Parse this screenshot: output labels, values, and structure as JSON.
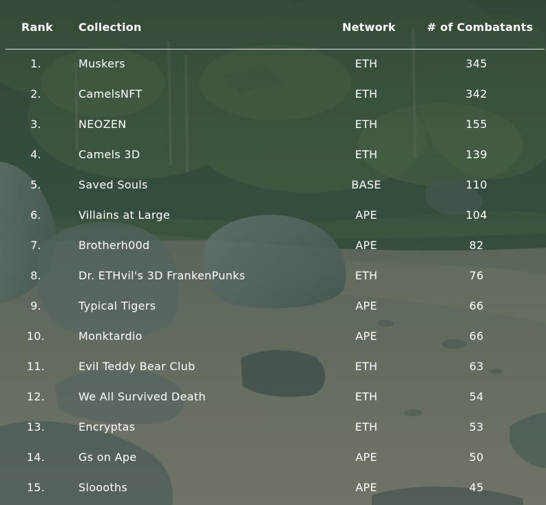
{
  "header": {
    "rank": "Rank",
    "collection": "Collection",
    "network": "Network",
    "combatants": "# of Combatants"
  },
  "rows": [
    {
      "rank": "1.",
      "collection": "Muskers",
      "network": "ETH",
      "combatants": "345"
    },
    {
      "rank": "2.",
      "collection": "CamelsNFT",
      "network": "ETH",
      "combatants": "342"
    },
    {
      "rank": "3.",
      "collection": "NEOZEN",
      "network": "ETH",
      "combatants": "155"
    },
    {
      "rank": "4.",
      "collection": "Camels 3D",
      "network": "ETH",
      "combatants": "139"
    },
    {
      "rank": "5.",
      "collection": "Saved Souls",
      "network": "BASE",
      "combatants": "110"
    },
    {
      "rank": "6.",
      "collection": "Villains at Large",
      "network": "APE",
      "combatants": "104"
    },
    {
      "rank": "7.",
      "collection": "Brotherh00d",
      "network": "APE",
      "combatants": "82"
    },
    {
      "rank": "8.",
      "collection": "Dr. ETHvil's 3D FrankenPunks",
      "network": "ETH",
      "combatants": "76"
    },
    {
      "rank": "9.",
      "collection": "Typical Tigers",
      "network": "APE",
      "combatants": "66"
    },
    {
      "rank": "10.",
      "collection": "Monktardio",
      "network": "APE",
      "combatants": "66"
    },
    {
      "rank": "11.",
      "collection": "Evil Teddy Bear Club",
      "network": "ETH",
      "combatants": "63"
    },
    {
      "rank": "12.",
      "collection": "We All Survived Death",
      "network": "ETH",
      "combatants": "54"
    },
    {
      "rank": "13.",
      "collection": "Encryptas",
      "network": "ETH",
      "combatants": "53"
    },
    {
      "rank": "14.",
      "collection": "Gs on Ape",
      "network": "APE",
      "combatants": "50"
    },
    {
      "rank": "15.",
      "collection": "Sloooths",
      "network": "APE",
      "combatants": "45"
    }
  ],
  "colors": {
    "text": "#ffffff",
    "divider": "#ffffff",
    "forest": "#3f5a44",
    "sand": "#8a8e7f",
    "rock": "#5d6f6a"
  }
}
